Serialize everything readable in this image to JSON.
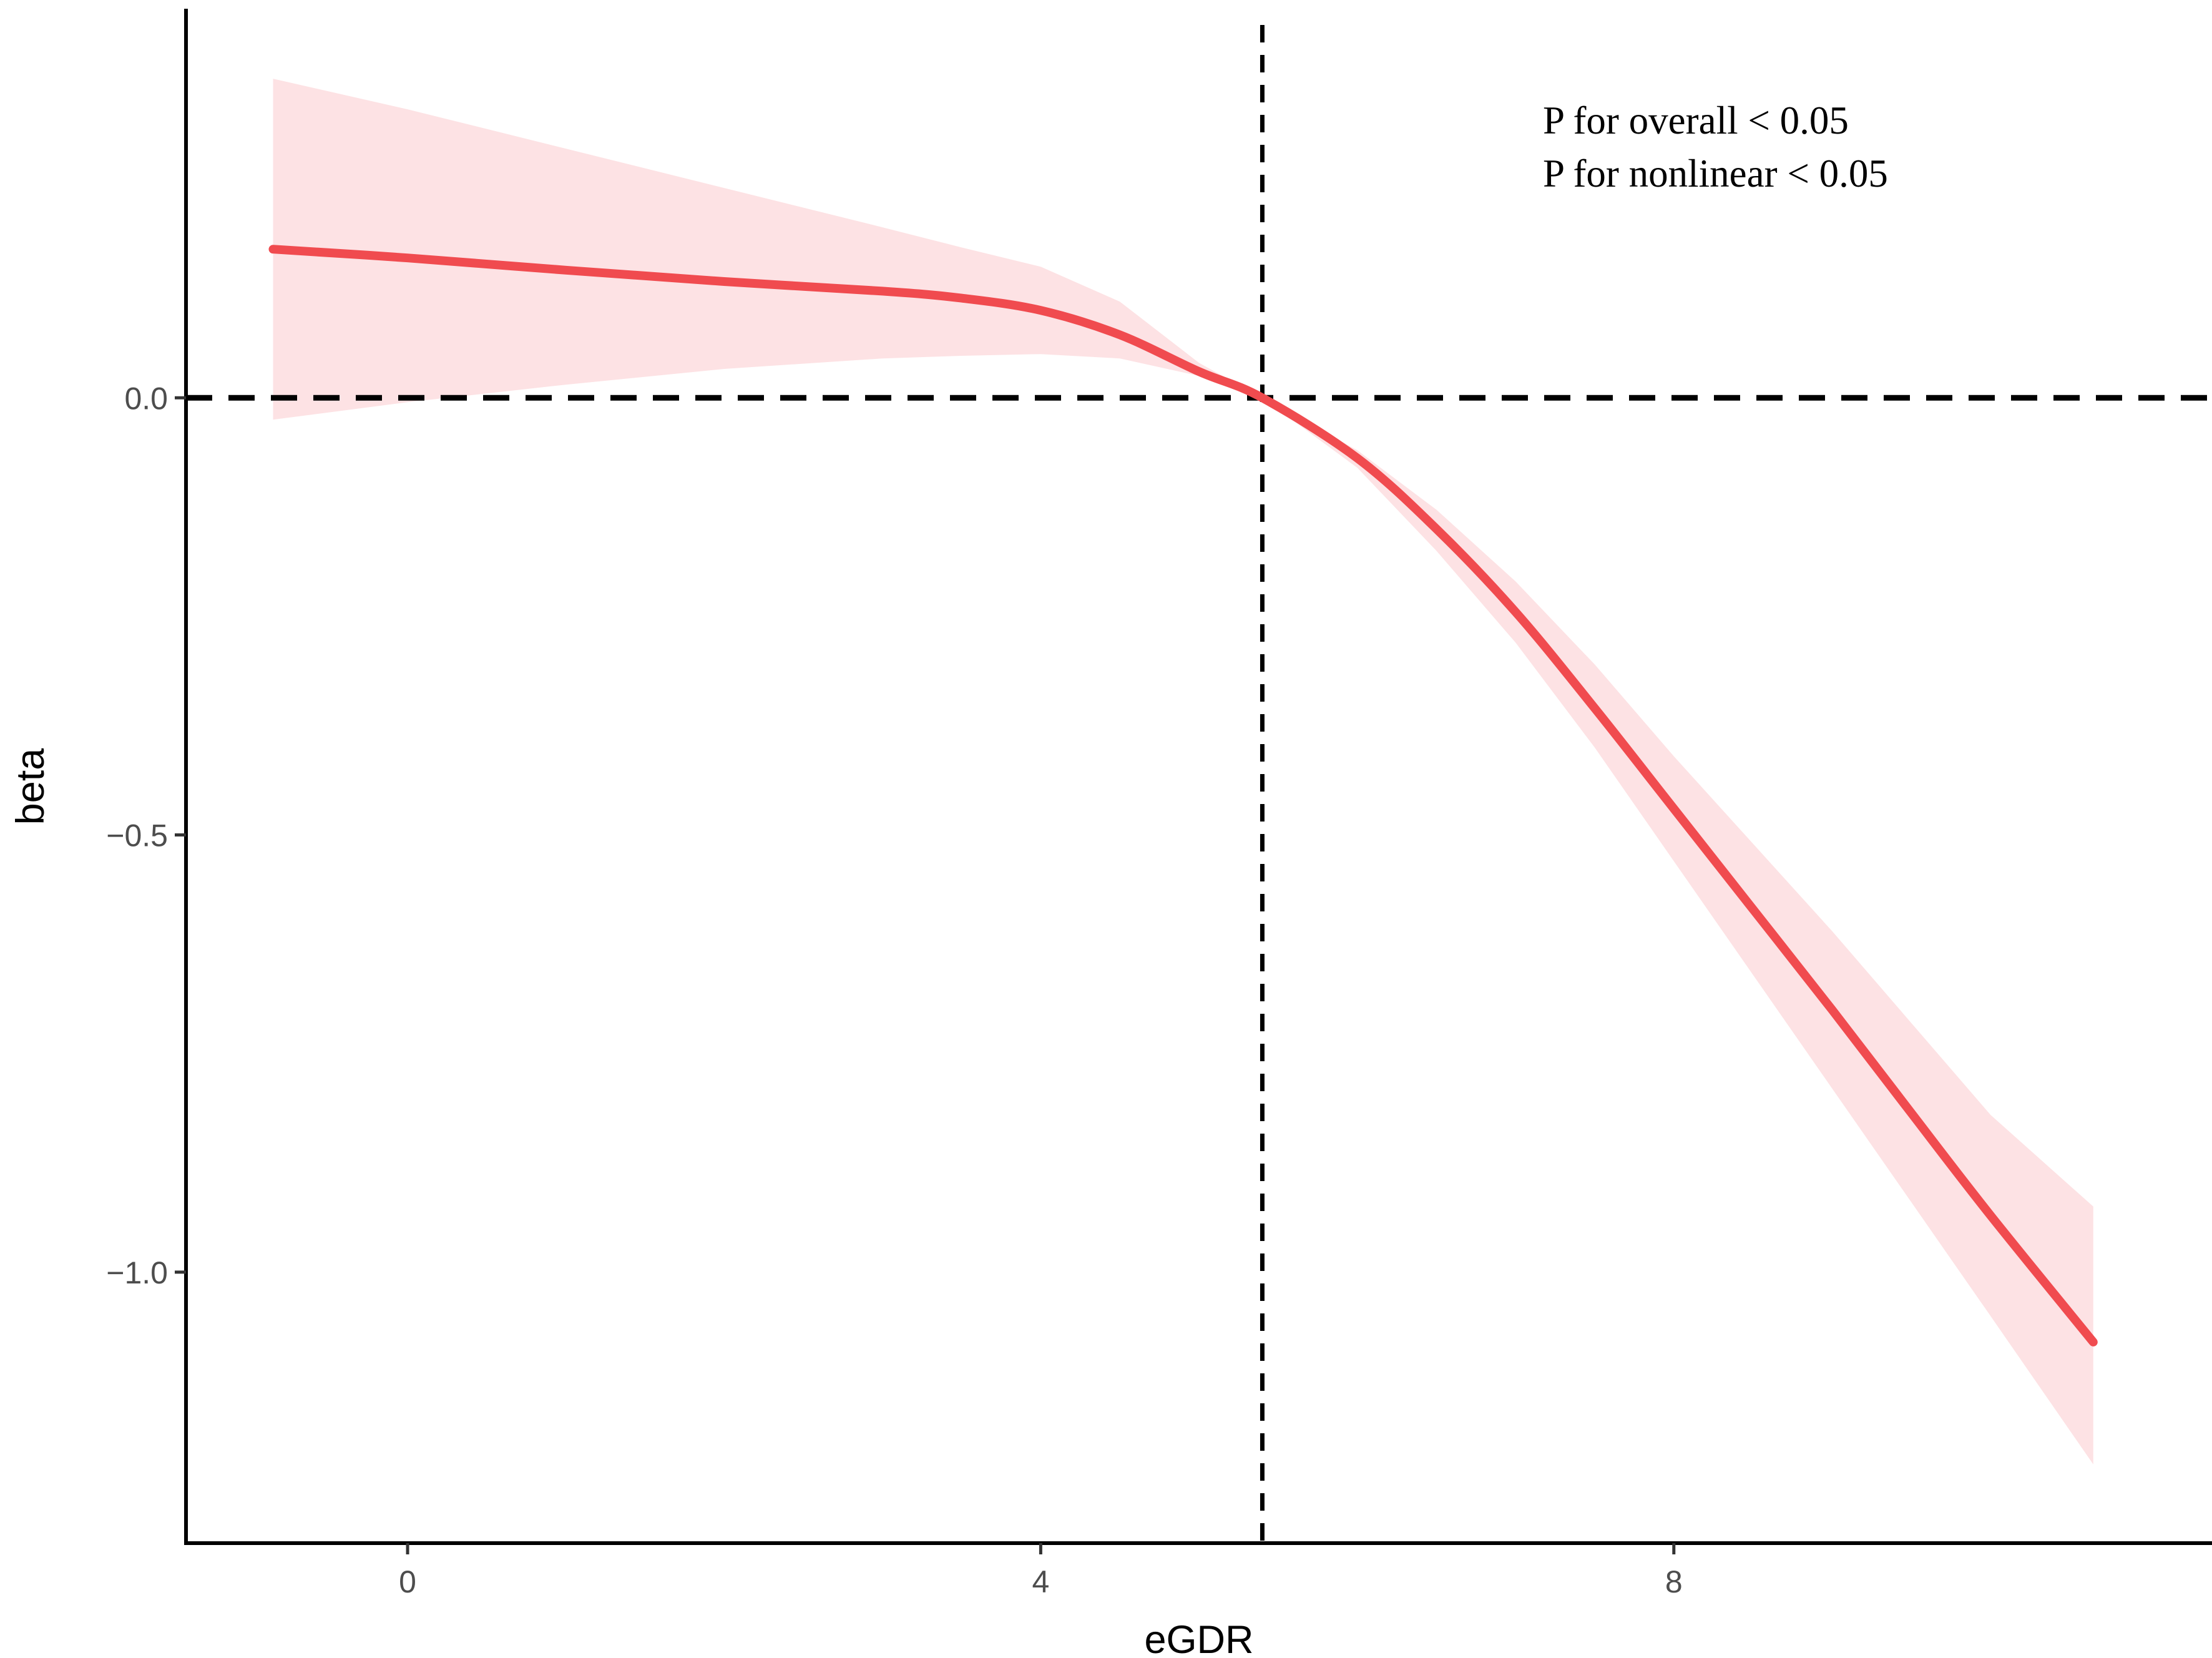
{
  "chart_data": {
    "type": "line",
    "title": "",
    "xlabel": "eGDR",
    "ylabel": "beta",
    "xlim": [
      -1.4,
      11.4
    ],
    "ylim": [
      -1.31,
      0.455
    ],
    "x_ticks": [
      {
        "value": 0,
        "label": "0"
      },
      {
        "value": 4,
        "label": "4"
      },
      {
        "value": 8,
        "label": "8"
      }
    ],
    "y_ticks": [
      {
        "value": 0.0,
        "label": "0.0"
      },
      {
        "value": -0.5,
        "label": "−0.5"
      },
      {
        "value": -1.0,
        "label": "−1.0"
      }
    ],
    "grid": false,
    "legend": "none",
    "reference_lines": {
      "horizontal_y": 0.0,
      "vertical_x": 5.4
    },
    "annotations": [
      "P for overall < 0.05",
      "P for nonlinear < 0.05"
    ],
    "series": [
      {
        "x": [
          -0.85,
          0,
          1,
          2,
          3,
          3.5,
          4,
          4.5,
          5,
          5.4,
          6,
          6.5,
          7,
          7.5,
          8,
          8.5,
          9,
          9.5,
          10,
          10.65
        ],
        "y": [
          0.17,
          0.16,
          0.146,
          0.133,
          0.122,
          0.114,
          0.1,
          0.072,
          0.03,
          0.0,
          -0.069,
          -0.15,
          -0.245,
          -0.355,
          -0.47,
          -0.585,
          -0.7,
          -0.818,
          -0.935,
          -1.08
        ],
        "lower": [
          -0.025,
          -0.005,
          0.015,
          0.033,
          0.045,
          0.048,
          0.05,
          0.045,
          0.025,
          0.0,
          -0.08,
          -0.175,
          -0.28,
          -0.4,
          -0.53,
          -0.66,
          -0.79,
          -0.92,
          -1.05,
          -1.22
        ],
        "upper": [
          0.365,
          0.33,
          0.285,
          0.24,
          0.195,
          0.172,
          0.15,
          0.11,
          0.04,
          0.0,
          -0.06,
          -0.128,
          -0.21,
          -0.305,
          -0.41,
          -0.51,
          -0.61,
          -0.715,
          -0.82,
          -0.925
        ]
      }
    ],
    "colors": {
      "line": "#F04B4F",
      "ribbon": "#FDE2E4",
      "axis": "#000000",
      "reference": "#000000"
    }
  }
}
